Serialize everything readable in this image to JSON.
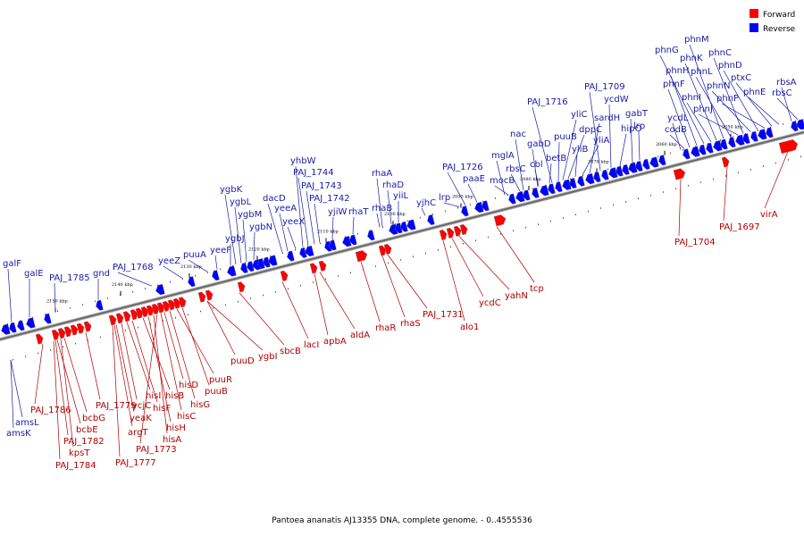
{
  "caption": "Pantoea ananatis AJ13355 DNA, complete genome. - 0..4555536",
  "legend": [
    {
      "label": "Forward",
      "color": "#ff0000"
    },
    {
      "label": "Reverse",
      "color": "#0000ff"
    }
  ],
  "colors": {
    "forward": "#ff0000",
    "reverse": "#0000ff",
    "forward_text": "#b00000",
    "reverse_text": "#1a1aa8"
  },
  "scale_ticks": [
    "2150 kbp",
    "2140 kbp",
    "2130 kbp",
    "2120 kbp",
    "2110 kbp",
    "2100 kbp",
    "2090 kbp",
    "2080 kbp",
    "2070 kbp",
    "2060 kbp",
    "2050 kbp"
  ],
  "reverse_genes": [
    "galF",
    "galE",
    "PAJ_1785",
    "gnd",
    "PAJ_1768",
    "yeeZ",
    "puuA",
    "yeeF",
    "ygbJ",
    "ygbK",
    "ygbL",
    "ygbM",
    "ygbN",
    "dacD",
    "yeeA",
    "yeeX",
    "yhbW",
    "PAJ_1744",
    "PAJ_1743",
    "PAJ_1742",
    "yjiW",
    "rhaT",
    "rhaA",
    "rhaD",
    "yiiL",
    "rhaB",
    "yjhC",
    "lrp",
    "PAJ_1726",
    "paaE",
    "mglA",
    "mocB",
    "rbsC",
    "nac",
    "cbl",
    "gabD",
    "betB",
    "puuB",
    "yliC",
    "dppC",
    "yliB",
    "yliA",
    "PAJ_1716",
    "sardH",
    "PAJ_1709",
    "ycdW",
    "hipO",
    "gabT",
    "lrp",
    "ycdL",
    "codB",
    "phnF",
    "phnH",
    "phnG",
    "phnI",
    "phnK",
    "phnM",
    "phnL",
    "phnJ",
    "phnC",
    "phnN",
    "phnD",
    "phnP",
    "ptxC",
    "phnE",
    "rbsA",
    "rbsC",
    "amsL",
    "amsK"
  ],
  "forward_genes": [
    "PAJ_1786",
    "bcbG",
    "bcbE",
    "PAJ_1782",
    "kpsT",
    "PAJ_1784",
    "PAJ_1779",
    "ycjC",
    "yeaK",
    "argT",
    "PAJ_1777",
    "hisI",
    "hisF",
    "hisB",
    "hisH",
    "hisA",
    "PAJ_1773",
    "hisC",
    "hisD",
    "hisG",
    "puuR",
    "puuB",
    "puuD",
    "ygbI",
    "sbcB",
    "lacI",
    "apbA",
    "aldA",
    "rhaR",
    "rhaS",
    "PAJ_1731",
    "alo1",
    "ycdC",
    "yahN",
    "tcp",
    "PAJ_1704",
    "PAJ_1697",
    "virA"
  ]
}
